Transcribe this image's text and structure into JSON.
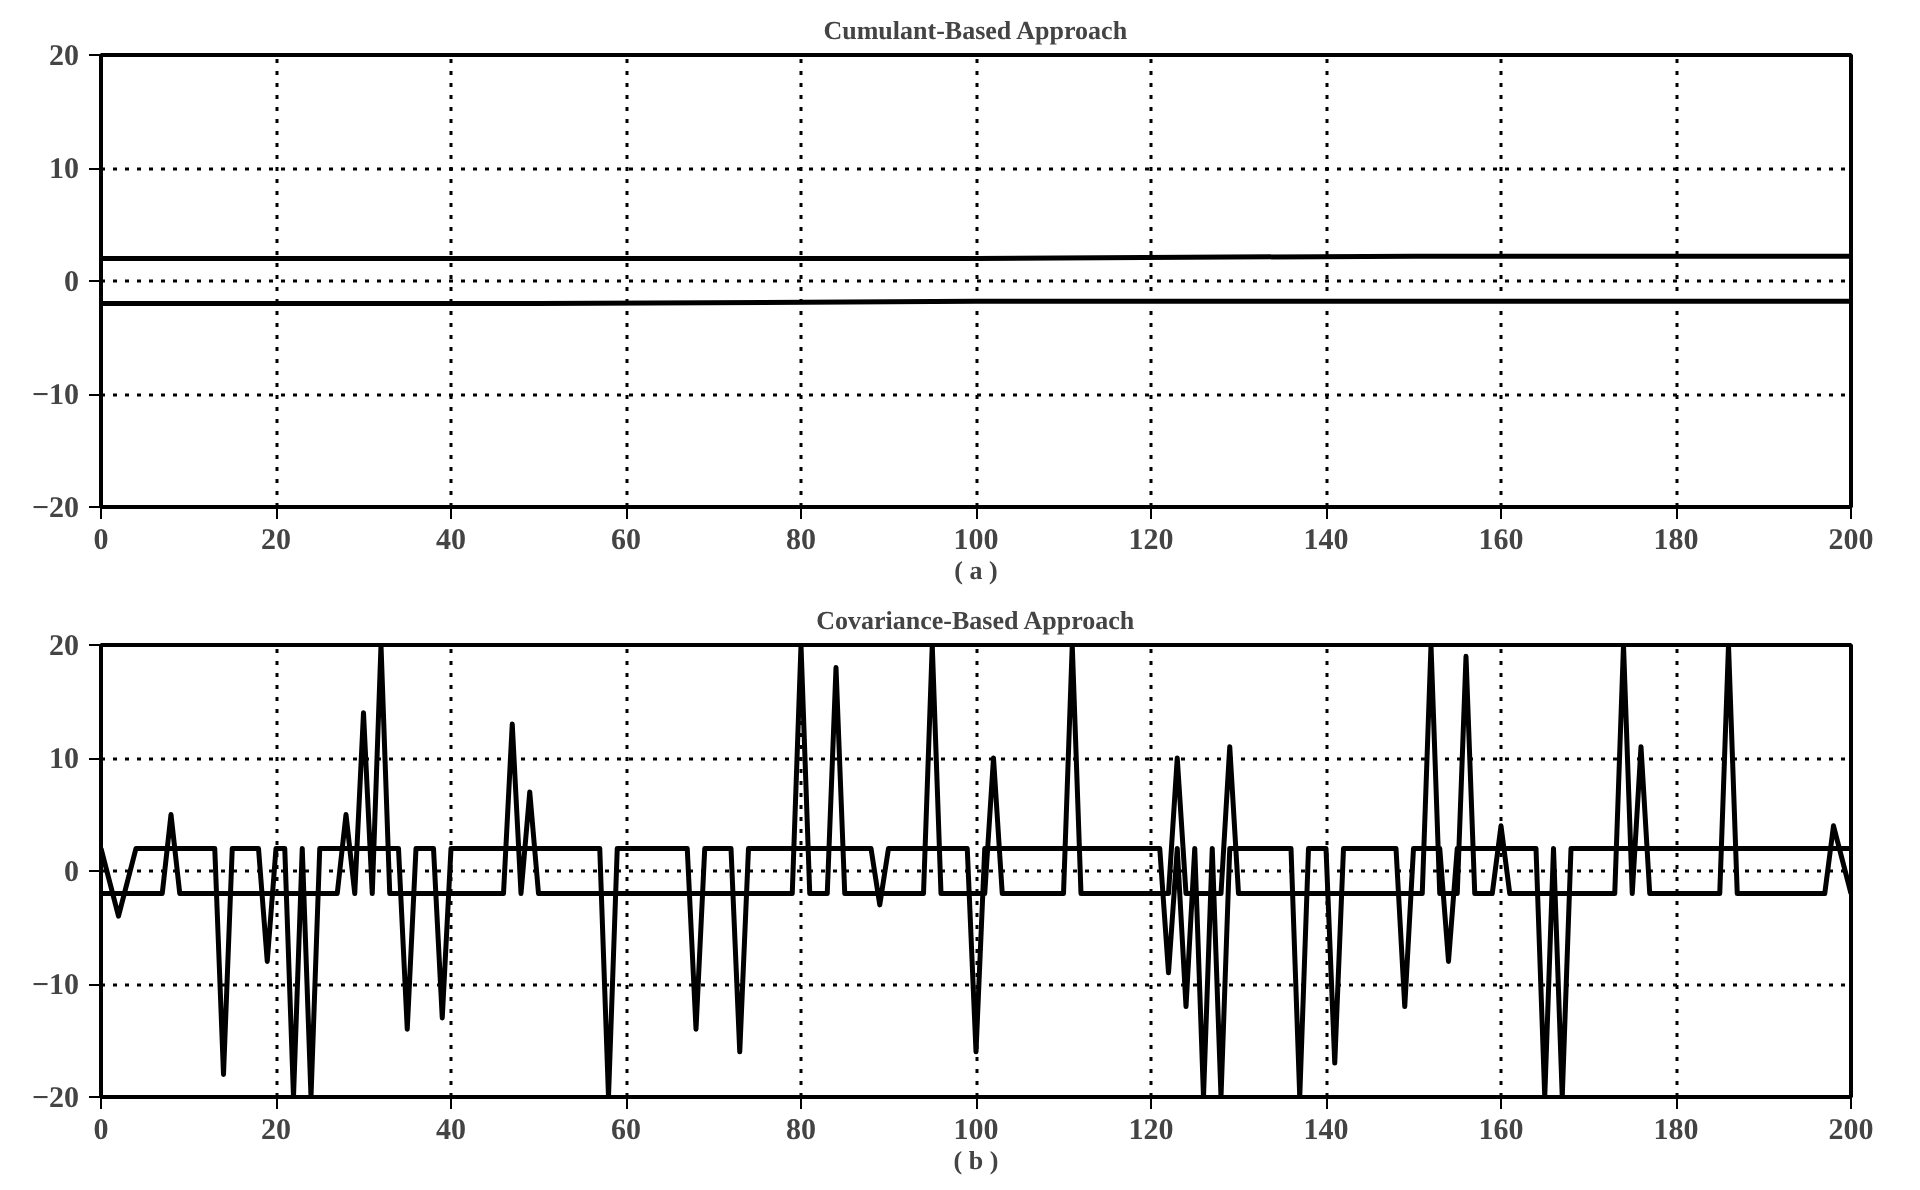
{
  "chart_data": [
    {
      "type": "line",
      "title": "Cumulant-Based Approach",
      "xlabel": "( a )",
      "xlim": [
        0,
        200
      ],
      "ylim": [
        -20,
        20
      ],
      "xticks": [
        0,
        20,
        40,
        60,
        80,
        100,
        120,
        140,
        160,
        180,
        200
      ],
      "yticks": [
        -20,
        -10,
        0,
        10,
        20
      ],
      "grid": true,
      "line_style": "solid",
      "series": [
        {
          "color": "#000000",
          "x": [
            0,
            50,
            100,
            150,
            200
          ],
          "values": [
            2,
            2,
            2,
            2.2,
            2.2
          ]
        },
        {
          "color": "#000000",
          "x": [
            0,
            50,
            100,
            150,
            200
          ],
          "values": [
            -2,
            -2,
            -1.8,
            -1.8,
            -1.8
          ]
        }
      ]
    },
    {
      "type": "line",
      "title": "Covariance-Based Approach",
      "xlabel": "( b )",
      "xlim": [
        0,
        200
      ],
      "ylim": [
        -20,
        20
      ],
      "xticks": [
        0,
        20,
        40,
        60,
        80,
        100,
        120,
        140,
        160,
        180,
        200
      ],
      "yticks": [
        -20,
        -10,
        0,
        10,
        20
      ],
      "grid": true,
      "line_style": "solid",
      "series": [
        {
          "color": "#000000",
          "x": [
            0,
            2,
            4,
            13,
            14,
            15,
            18,
            19,
            20,
            21,
            22,
            23,
            24,
            25,
            34,
            35,
            36,
            38,
            39,
            40,
            57,
            58,
            59,
            67,
            68,
            69,
            72,
            73,
            74,
            88,
            89,
            90,
            99,
            100,
            101,
            121,
            122,
            123,
            124,
            125,
            126,
            127,
            128,
            129,
            136,
            137,
            138,
            140,
            141,
            142,
            148,
            149,
            150,
            153,
            154,
            155,
            164,
            165,
            166,
            167,
            168,
            200
          ],
          "values": [
            2,
            -4,
            2,
            2,
            -18,
            2,
            2,
            -8,
            2,
            2,
            -20,
            2,
            -20,
            2,
            2,
            -14,
            2,
            2,
            -13,
            2,
            2,
            -20,
            2,
            2,
            -14,
            2,
            2,
            -16,
            2,
            2,
            -3,
            2,
            2,
            -16,
            2,
            2,
            -9,
            2,
            -12,
            2,
            -20,
            2,
            -20,
            2,
            2,
            -20,
            2,
            2,
            -17,
            2,
            2,
            -12,
            2,
            2,
            -8,
            2,
            2,
            -20,
            2,
            -20,
            2,
            2
          ]
        },
        {
          "color": "#000000",
          "x": [
            0,
            7,
            8,
            9,
            27,
            28,
            29,
            30,
            31,
            32,
            33,
            46,
            47,
            48,
            49,
            50,
            79,
            80,
            81,
            83,
            84,
            85,
            94,
            95,
            96,
            101,
            102,
            103,
            110,
            111,
            112,
            122,
            123,
            124,
            128,
            129,
            130,
            151,
            152,
            153,
            155,
            156,
            157,
            159,
            160,
            161,
            173,
            174,
            175,
            176,
            177,
            185,
            186,
            187,
            197,
            198,
            200
          ],
          "values": [
            -2,
            -2,
            5,
            -2,
            -2,
            5,
            -2,
            14,
            -2,
            20,
            -2,
            -2,
            13,
            -2,
            7,
            -2,
            -2,
            20,
            -2,
            -2,
            18,
            -2,
            -2,
            20,
            -2,
            -2,
            10,
            -2,
            -2,
            20,
            -2,
            -2,
            10,
            -2,
            -2,
            11,
            -2,
            -2,
            20,
            -2,
            -2,
            19,
            -2,
            -2,
            4,
            -2,
            -2,
            20,
            -2,
            11,
            -2,
            -2,
            20,
            -2,
            -2,
            4,
            -2
          ]
        }
      ]
    }
  ]
}
